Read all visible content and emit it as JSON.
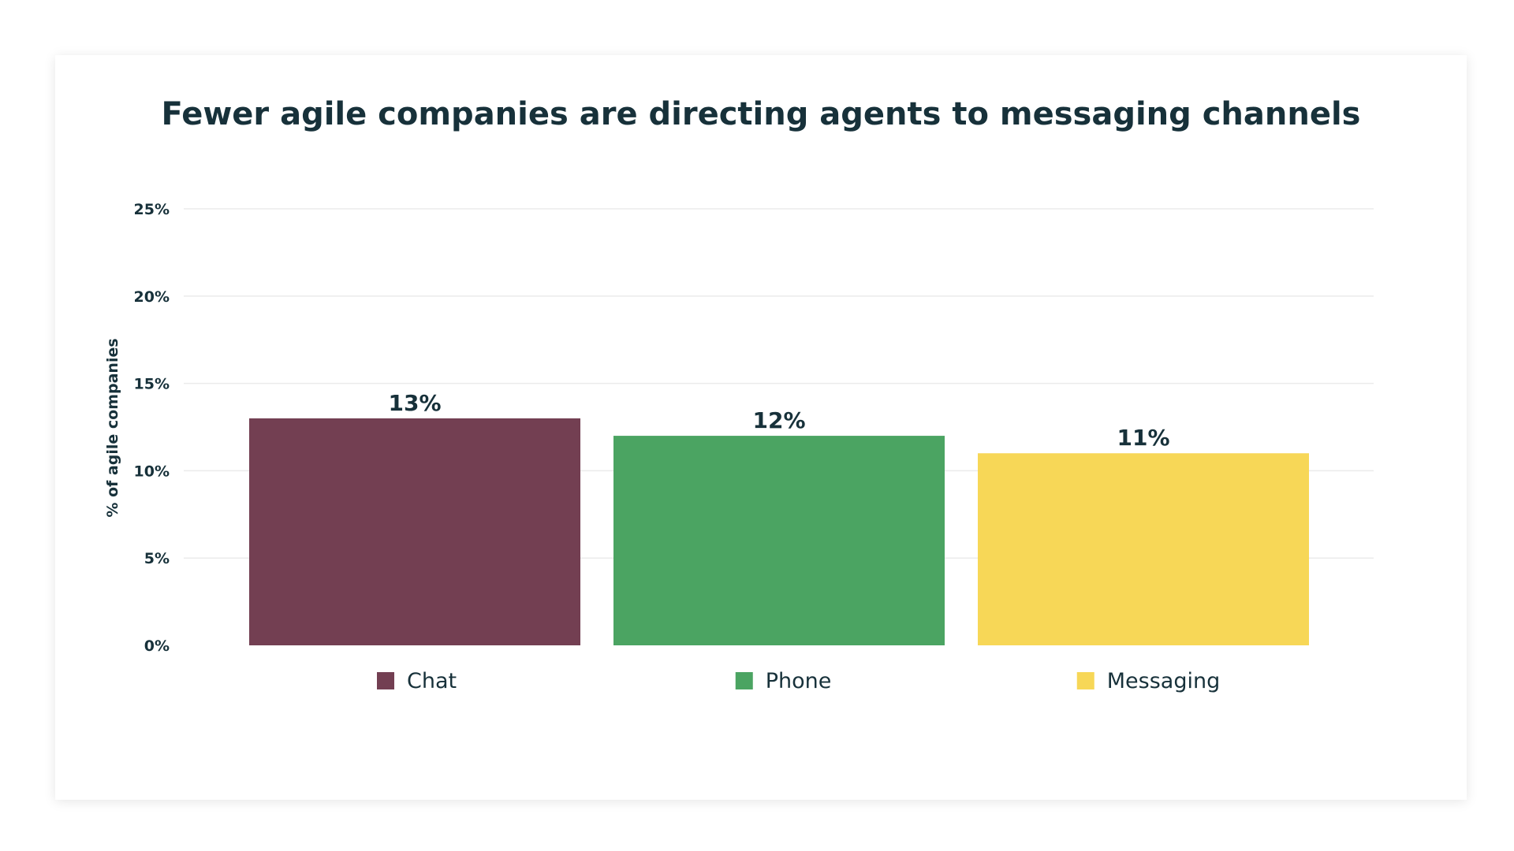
{
  "chart_data": {
    "type": "bar",
    "title": "Fewer agile companies are directing agents to messaging channels",
    "ylabel": "% of agile companies",
    "xlabel": "",
    "categories": [
      "Chat",
      "Phone",
      "Messaging"
    ],
    "values": [
      13,
      12,
      11
    ],
    "value_labels": [
      "13%",
      "12%",
      "11%"
    ],
    "colors": [
      "#733f52",
      "#4ba462",
      "#f7d757"
    ],
    "ylim": [
      0,
      25
    ],
    "y_ticks": [
      0,
      5,
      10,
      15,
      20,
      25
    ],
    "y_tick_labels": [
      "0%",
      "5%",
      "10%",
      "15%",
      "20%",
      "25%"
    ],
    "grid": true,
    "legend": {
      "position": "bottom",
      "entries": [
        "Chat",
        "Phone",
        "Messaging"
      ]
    }
  }
}
